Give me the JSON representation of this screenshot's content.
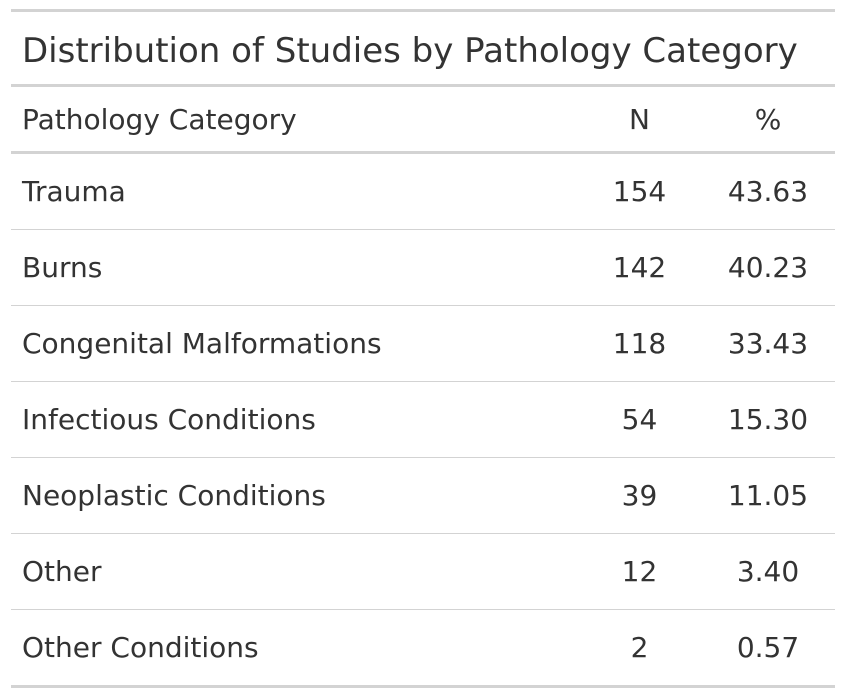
{
  "chart_data": {
    "type": "table",
    "title": "Distribution of Studies by Pathology Category",
    "columns": [
      "Pathology Category",
      "N",
      "%"
    ],
    "rows": [
      {
        "category": "Trauma",
        "n": "154",
        "pct": "43.63"
      },
      {
        "category": "Burns",
        "n": "142",
        "pct": "40.23"
      },
      {
        "category": "Congenital Malformations",
        "n": "118",
        "pct": "33.43"
      },
      {
        "category": "Infectious Conditions",
        "n": "54",
        "pct": "15.30"
      },
      {
        "category": "Neoplastic Conditions",
        "n": "39",
        "pct": "11.05"
      },
      {
        "category": "Other",
        "n": "12",
        "pct": "3.40"
      },
      {
        "category": "Other Conditions",
        "n": "2",
        "pct": "0.57"
      }
    ]
  }
}
